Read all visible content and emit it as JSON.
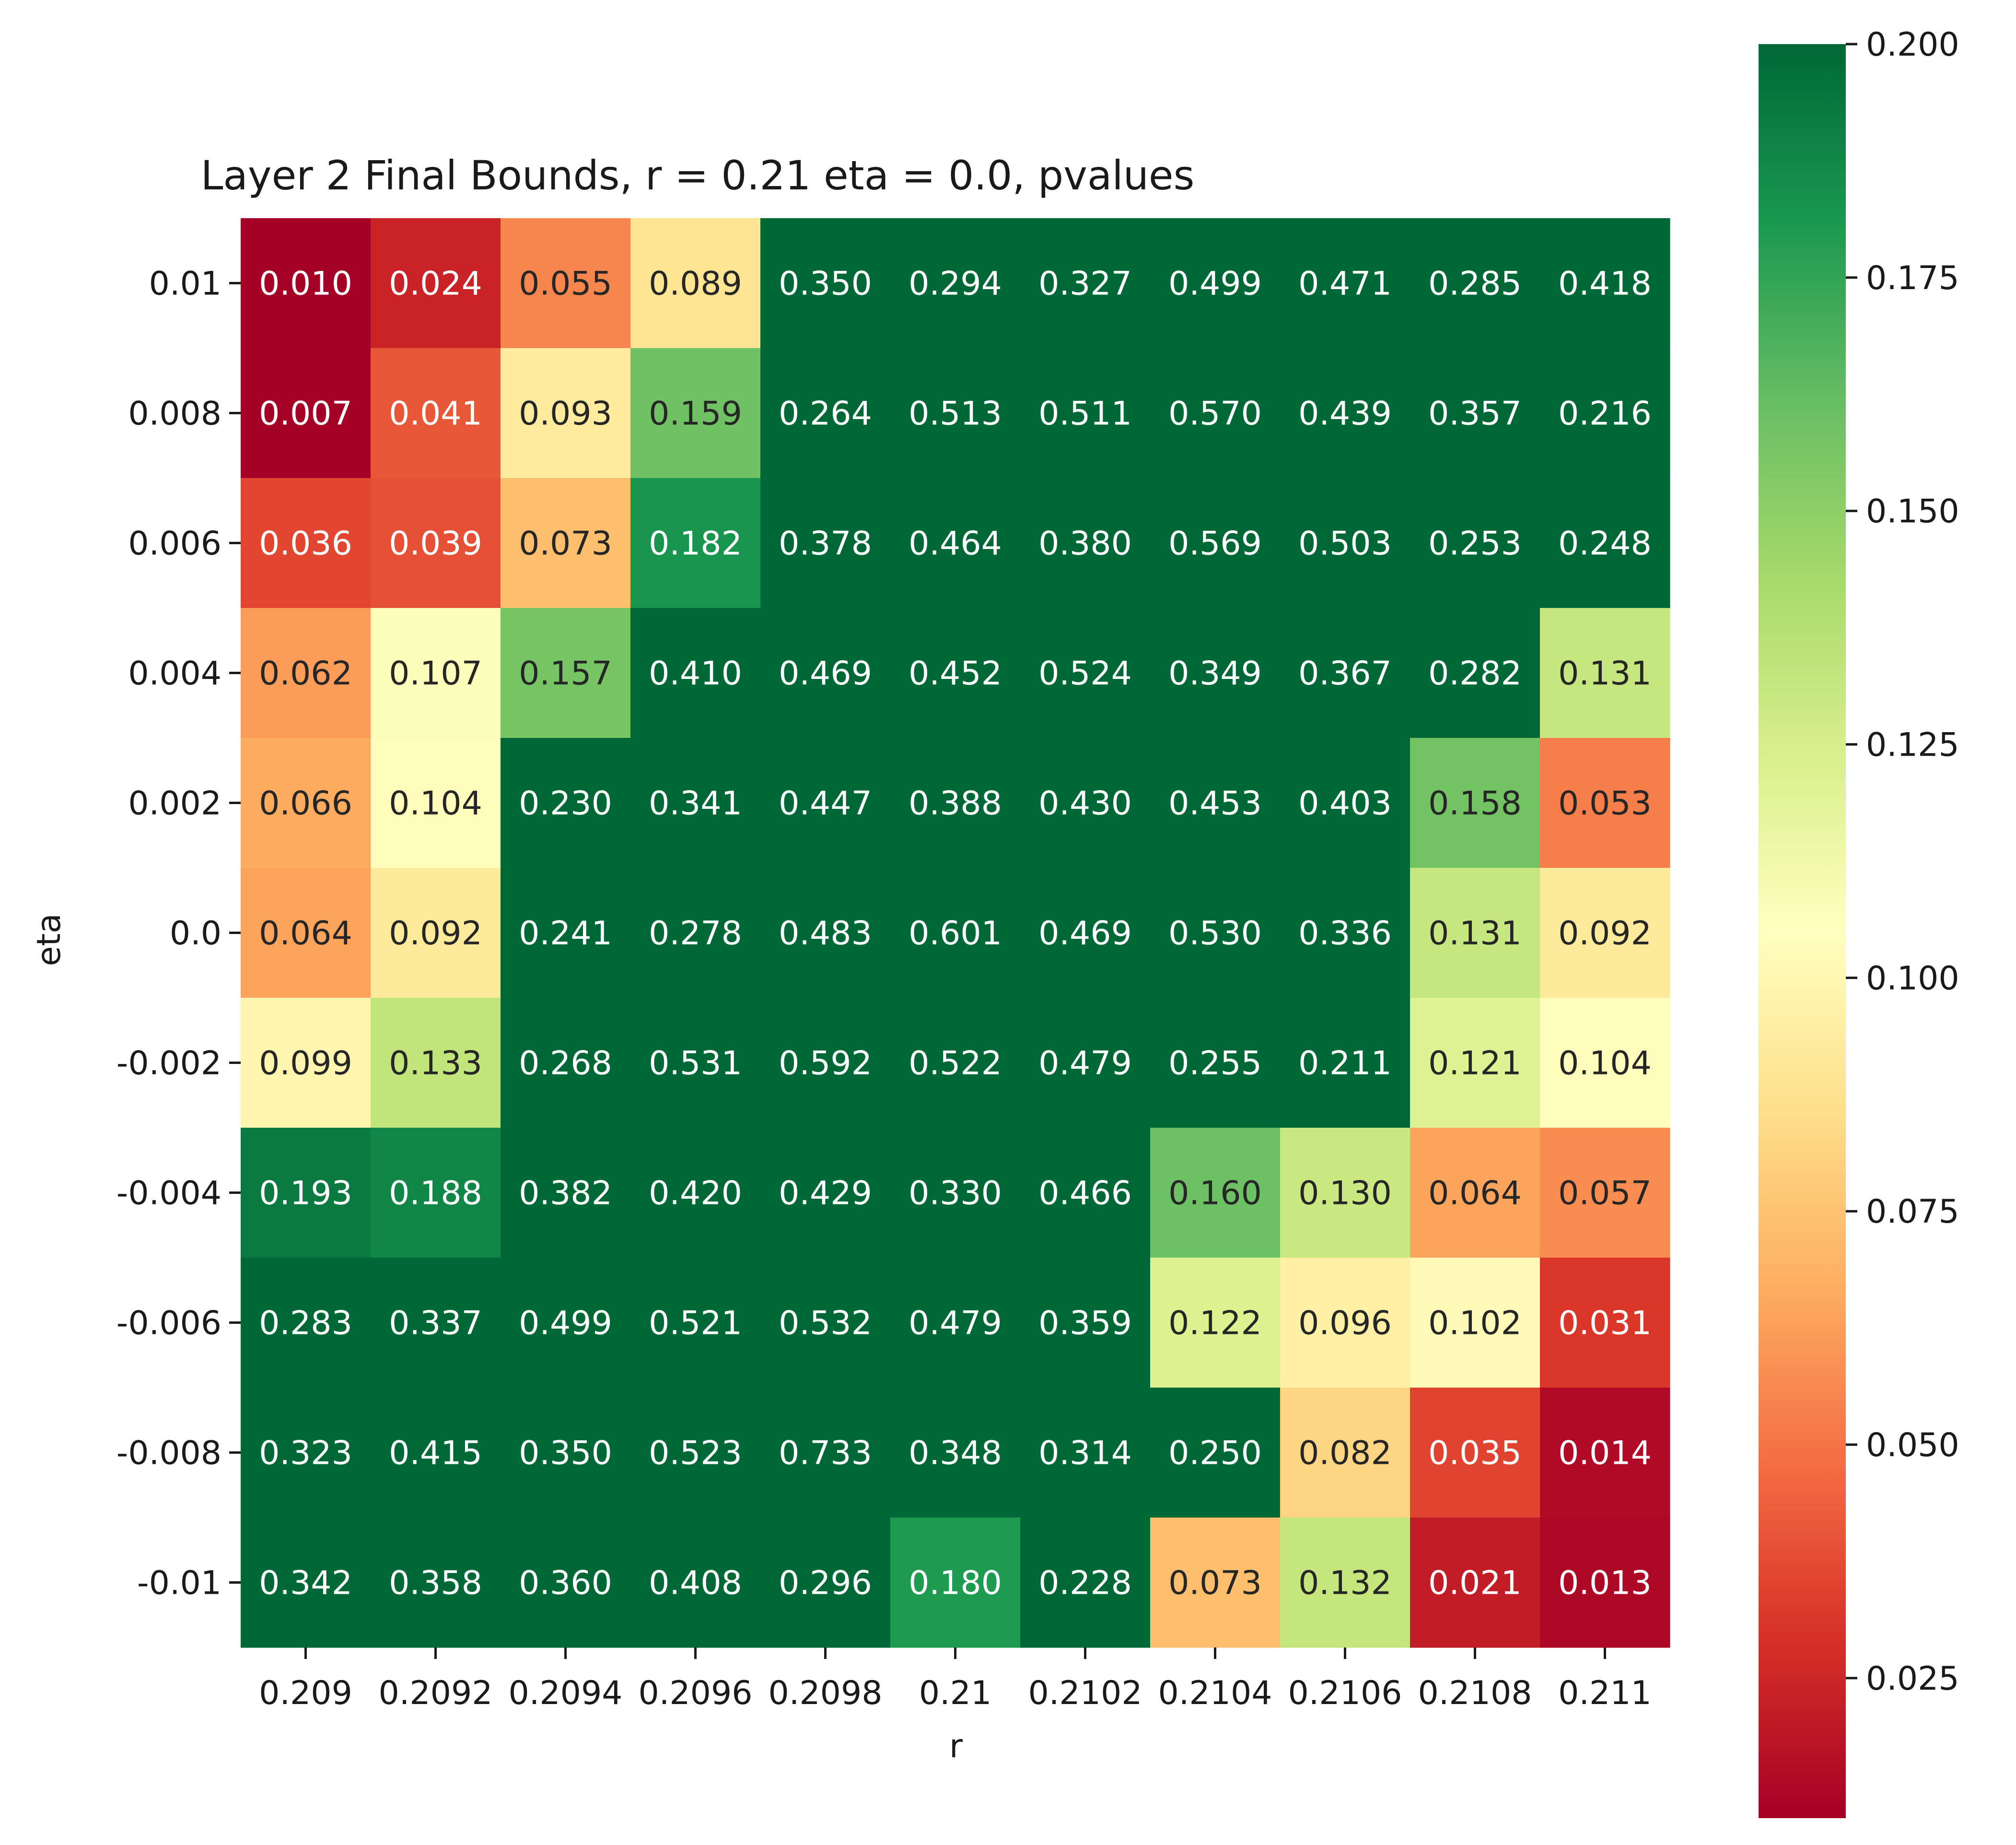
{
  "chart_data": {
    "type": "heatmap",
    "title": "Layer 2 Final Bounds, r = 0.21 eta = 0.0, pvalues",
    "xlabel": "r",
    "ylabel": "eta",
    "x_tick_labels": [
      "0.209",
      "0.2092",
      "0.2094",
      "0.2096",
      "0.2098",
      "0.21",
      "0.2102",
      "0.2104",
      "0.2106",
      "0.2108",
      "0.211"
    ],
    "y_tick_labels": [
      "0.01",
      "0.008",
      "0.006",
      "0.004",
      "0.002",
      "0.0",
      "-0.002",
      "-0.004",
      "-0.006",
      "-0.008",
      "-0.01"
    ],
    "values": [
      [
        0.01,
        0.024,
        0.055,
        0.089,
        0.35,
        0.294,
        0.327,
        0.499,
        0.471,
        0.285,
        0.418
      ],
      [
        0.007,
        0.041,
        0.093,
        0.159,
        0.264,
        0.513,
        0.511,
        0.57,
        0.439,
        0.357,
        0.216
      ],
      [
        0.036,
        0.039,
        0.073,
        0.182,
        0.378,
        0.464,
        0.38,
        0.569,
        0.503,
        0.253,
        0.248
      ],
      [
        0.062,
        0.107,
        0.157,
        0.41,
        0.469,
        0.452,
        0.524,
        0.349,
        0.367,
        0.282,
        0.131
      ],
      [
        0.066,
        0.104,
        0.23,
        0.341,
        0.447,
        0.388,
        0.43,
        0.453,
        0.403,
        0.158,
        0.053
      ],
      [
        0.064,
        0.092,
        0.241,
        0.278,
        0.483,
        0.601,
        0.469,
        0.53,
        0.336,
        0.131,
        0.092
      ],
      [
        0.099,
        0.133,
        0.268,
        0.531,
        0.592,
        0.522,
        0.479,
        0.255,
        0.211,
        0.121,
        0.104
      ],
      [
        0.193,
        0.188,
        0.382,
        0.42,
        0.429,
        0.33,
        0.466,
        0.16,
        0.13,
        0.064,
        0.057
      ],
      [
        0.283,
        0.337,
        0.499,
        0.521,
        0.532,
        0.479,
        0.359,
        0.122,
        0.096,
        0.102,
        0.031
      ],
      [
        0.323,
        0.415,
        0.35,
        0.523,
        0.733,
        0.348,
        0.314,
        0.25,
        0.082,
        0.035,
        0.014
      ],
      [
        0.342,
        0.358,
        0.36,
        0.408,
        0.296,
        0.18,
        0.228,
        0.073,
        0.132,
        0.021,
        0.013
      ]
    ],
    "cell_labels": [
      [
        "0.010",
        "0.024",
        "0.055",
        "0.089",
        "0.350",
        "0.294",
        "0.327",
        "0.499",
        "0.471",
        "0.285",
        "0.418"
      ],
      [
        "0.007",
        "0.041",
        "0.093",
        "0.159",
        "0.264",
        "0.513",
        "0.511",
        "0.570",
        "0.439",
        "0.357",
        "0.216"
      ],
      [
        "0.036",
        "0.039",
        "0.073",
        "0.182",
        "0.378",
        "0.464",
        "0.380",
        "0.569",
        "0.503",
        "0.253",
        "0.248"
      ],
      [
        "0.062",
        "0.107",
        "0.157",
        "0.410",
        "0.469",
        "0.452",
        "0.524",
        "0.349",
        "0.367",
        "0.282",
        "0.131"
      ],
      [
        "0.066",
        "0.104",
        "0.230",
        "0.341",
        "0.447",
        "0.388",
        "0.430",
        "0.453",
        "0.403",
        "0.158",
        "0.053"
      ],
      [
        "0.064",
        "0.092",
        "0.241",
        "0.278",
        "0.483",
        "0.601",
        "0.469",
        "0.530",
        "0.336",
        "0.131",
        "0.092"
      ],
      [
        "0.099",
        "0.133",
        "0.268",
        "0.531",
        "0.592",
        "0.522",
        "0.479",
        "0.255",
        "0.211",
        "0.121",
        "0.104"
      ],
      [
        "0.193",
        "0.188",
        "0.382",
        "0.420",
        "0.429",
        "0.330",
        "0.466",
        "0.160",
        "0.130",
        "0.064",
        "0.057"
      ],
      [
        "0.283",
        "0.337",
        "0.499",
        "0.521",
        "0.532",
        "0.479",
        "0.359",
        "0.122",
        "0.096",
        "0.102",
        "0.031"
      ],
      [
        "0.323",
        "0.415",
        "0.350",
        "0.523",
        "0.733",
        "0.348",
        "0.314",
        "0.250",
        "0.082",
        "0.035",
        "0.014"
      ],
      [
        "0.342",
        "0.358",
        "0.360",
        "0.408",
        "0.296",
        "0.180",
        "0.228",
        "0.073",
        "0.132",
        "0.021",
        "0.013"
      ]
    ],
    "colormap": "RdYlGn",
    "color_range": [
      0.01,
      0.2
    ],
    "colorbar_ticks": [
      0.025,
      0.05,
      0.075,
      0.1,
      0.125,
      0.15,
      0.175,
      0.2
    ],
    "colorbar_tick_labels": [
      "0.025",
      "0.050",
      "0.075",
      "0.100",
      "0.125",
      "0.150",
      "0.175",
      "0.200"
    ],
    "colorbar_placement": "right",
    "grid": false
  }
}
